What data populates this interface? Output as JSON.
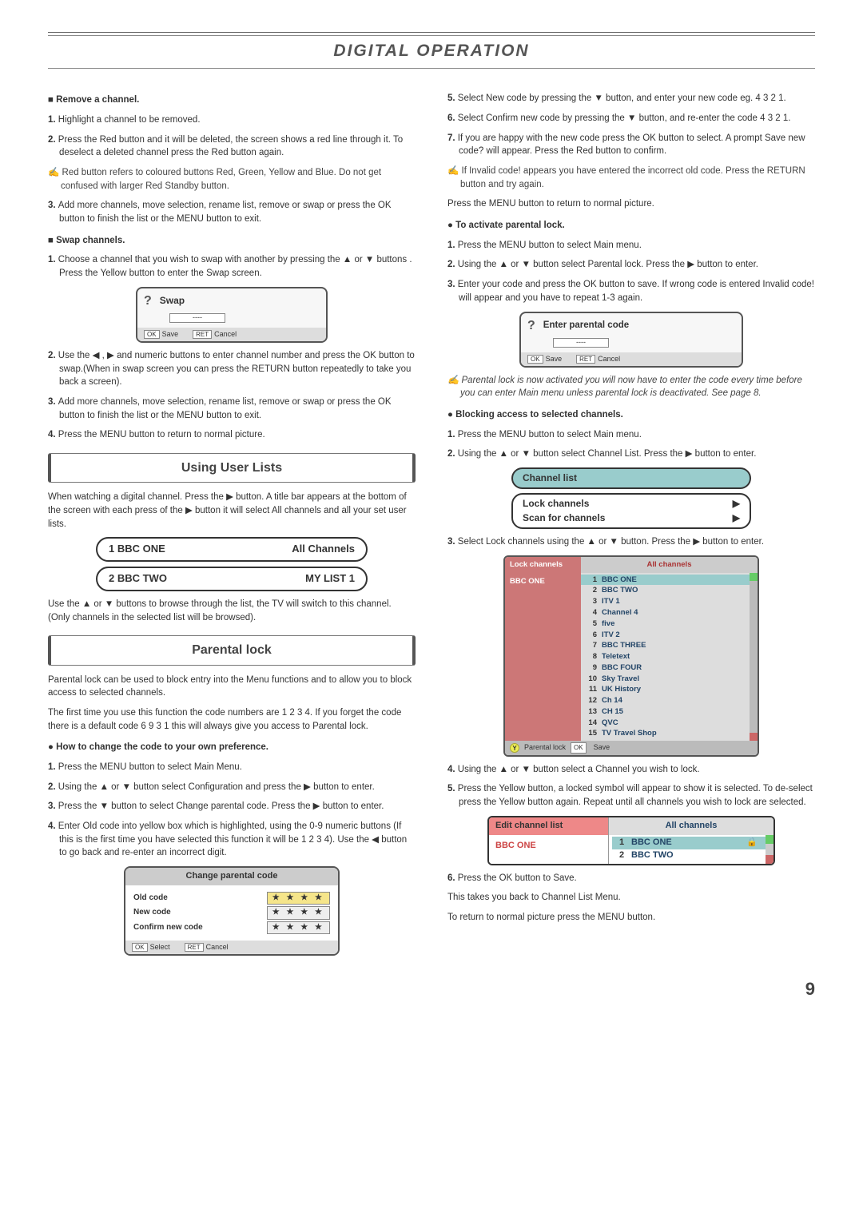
{
  "page": {
    "title": "DIGITAL OPERATION",
    "number": "9"
  },
  "left": {
    "remove": {
      "heading": "Remove a channel.",
      "steps": [
        "Highlight a channel to be removed.",
        "Press the Red button and it will be deleted, the screen shows a red line through it. To deselect a deleted channel press the Red button again.",
        "Add more channels, move selection, rename list, remove or swap or press the OK button to finish the list or the MENU button to exit."
      ],
      "note": "Red button refers to coloured buttons Red, Green, Yellow and Blue. Do not get confused with larger Red Standby button."
    },
    "swap": {
      "heading": "Swap channels.",
      "steps": [
        "Choose a channel that you wish to swap with another by pressing the ▲ or ▼ buttons . Press the Yellow button to enter the Swap screen.",
        "Use the ◀ , ▶ and numeric buttons to enter channel number and press the OK button to swap.(When in swap screen you can press the RETURN button repeatedly to take you back a screen).",
        "Add more channels, move selection, rename list, remove or swap or press the OK button to finish the list or the MENU button to exit.",
        "Press the MENU button to return to normal picture."
      ],
      "box": {
        "title": "Swap",
        "placeholder": "----",
        "saveKey": "OK",
        "saveLabel": "Save",
        "cancelKey": "RET",
        "cancelLabel": "Cancel"
      }
    },
    "userLists": {
      "title": "Using User Lists",
      "intro": "When watching a digital channel. Press the ▶ button. A title bar appears at the bottom of the screen with each press of the ▶ button it will select All channels and all your set user lists.",
      "pill1": {
        "left": "1  BBC ONE",
        "right": "All Channels"
      },
      "pill2": {
        "left": "2  BBC TWO",
        "right": "MY LIST 1"
      },
      "outro": "Use the ▲ or ▼ buttons to browse through the list, the TV will switch to this channel. (Only channels in the selected list will be browsed)."
    },
    "parental": {
      "title": "Parental lock",
      "p1": "Parental lock can be used to block entry into the Menu functions and to allow you to block access to selected channels.",
      "p2": "The first time you use this function the code numbers are 1 2 3 4. If you forget the code there is a default code 6 9 3 1 this will always give you access to Parental lock.",
      "changeHead": "How to change the code to your own preference.",
      "steps": [
        "Press the MENU button to select Main Menu.",
        "Using the ▲ or ▼ button select Configuration and press the ▶ button to enter.",
        "Press the ▼ button to select Change parental code. Press the ▶ button to enter.",
        "Enter Old code into yellow box which is highlighted, using the 0-9 numeric buttons (If this is the first time you have selected this function it will be 1 2 3 4). Use the ◀ button to go back and re-enter an incorrect digit."
      ],
      "box": {
        "head": "Change parental code",
        "rows": [
          {
            "label": "Old code",
            "stars": "★ ★ ★ ★",
            "active": true
          },
          {
            "label": "New code",
            "stars": "★ ★ ★ ★",
            "active": false
          },
          {
            "label": "Confirm new code",
            "stars": "★ ★ ★ ★",
            "active": false
          }
        ],
        "selectKey": "OK",
        "selectLabel": "Select",
        "cancelKey": "RET",
        "cancelLabel": "Cancel"
      }
    }
  },
  "right": {
    "cont": {
      "steps": [
        "Select New code by pressing the ▼ button, and enter your new code eg. 4 3 2 1.",
        "Select Confirm new code by pressing the ▼ button, and re-enter the code 4 3 2 1.",
        "If you are happy with the new code press the OK button to select. A prompt Save new code? will appear. Press the Red button to confirm."
      ],
      "note": "If Invalid code! appears you have entered the incorrect old code. Press the RETURN button and try again.",
      "after": "Press the MENU button to return to normal picture."
    },
    "activate": {
      "heading": "To activate parental lock.",
      "steps": [
        "Press the MENU button to select Main menu.",
        "Using the ▲ or ▼ button select Parental lock. Press the ▶ button to enter.",
        "Enter your code and press the OK button to save. If wrong code is entered Invalid code! will appear and you have to repeat 1-3 again."
      ],
      "box": {
        "title": "Enter parental code",
        "placeholder": "----",
        "saveKey": "OK",
        "saveLabel": "Save",
        "cancelKey": "RET",
        "cancelLabel": "Cancel"
      },
      "note": "Parental lock is now activated you will now have to enter the code every time before you can enter Main menu unless parental lock is deactivated. See page 8."
    },
    "blocking": {
      "heading": "Blocking access to selected channels.",
      "steps1": [
        "Press the MENU button to select Main menu.",
        "Using the ▲ or ▼ button select Channel List. Press the ▶ button to enter."
      ],
      "chlist": {
        "head": "Channel list",
        "items": [
          "Lock channels",
          "Scan for channels"
        ]
      },
      "step3": "Select Lock channels using the ▲ or ▼ button. Press the ▶ button to enter.",
      "lockTable": {
        "leftHead": "Lock channels",
        "rightHead": "All channels",
        "side": "BBC ONE",
        "rows": [
          {
            "n": "1",
            "name": "BBC ONE",
            "hl": true
          },
          {
            "n": "2",
            "name": "BBC TWO"
          },
          {
            "n": "3",
            "name": "ITV 1"
          },
          {
            "n": "4",
            "name": "Channel 4"
          },
          {
            "n": "5",
            "name": "five"
          },
          {
            "n": "6",
            "name": "ITV 2"
          },
          {
            "n": "7",
            "name": "BBC THREE"
          },
          {
            "n": "8",
            "name": "Teletext"
          },
          {
            "n": "9",
            "name": "BBC FOUR"
          },
          {
            "n": "10",
            "name": "Sky Travel"
          },
          {
            "n": "11",
            "name": "UK History"
          },
          {
            "n": "12",
            "name": "Ch 14"
          },
          {
            "n": "13",
            "name": "CH 15"
          },
          {
            "n": "14",
            "name": "QVC"
          },
          {
            "n": "15",
            "name": "TV Travel Shop"
          }
        ],
        "footY": "Y",
        "footLabel": "Parental lock",
        "footKey": "OK",
        "footSave": "Save"
      },
      "step4": "Using the ▲ or ▼ button select a Channel you wish to lock.",
      "step5": "Press the Yellow button, a locked symbol will appear to show it is selected. To  de-select press the Yellow button again. Repeat until all channels you wish to lock are selected.",
      "editTable": {
        "leftHead": "Edit channel list",
        "rightHead": "All channels",
        "side": "BBC ONE",
        "rows": [
          {
            "n": "1",
            "name": "BBC ONE",
            "hl": true,
            "lock": true
          },
          {
            "n": "2",
            "name": "BBC TWO"
          }
        ]
      },
      "step6": "Press the OK button to Save.",
      "p1": "This takes you back to Channel List Menu.",
      "p2": "To return to normal picture press the MENU button."
    }
  }
}
